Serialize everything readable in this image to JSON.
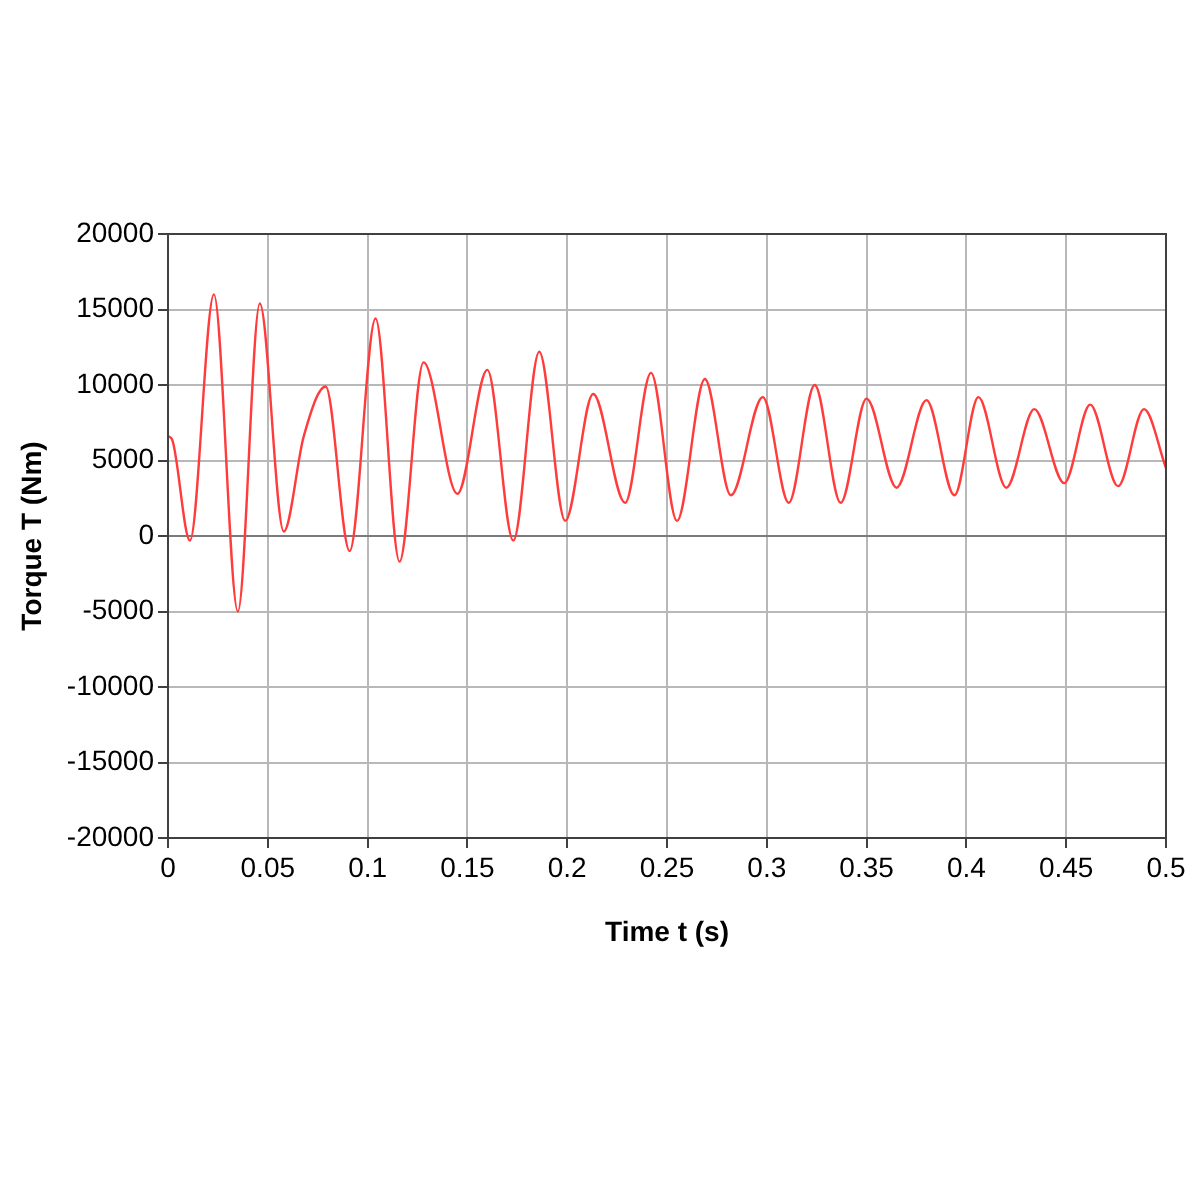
{
  "chart_data": {
    "type": "line",
    "xlabel": "Time t (s)",
    "ylabel": "Torque T (Nm)",
    "x": [
      0,
      0.002,
      0.011,
      0.023,
      0.035,
      0.046,
      0.058,
      0.068,
      0.079,
      0.091,
      0.104,
      0.116,
      0.128,
      0.145,
      0.16,
      0.173,
      0.186,
      0.199,
      0.213,
      0.229,
      0.242,
      0.255,
      0.269,
      0.282,
      0.298,
      0.311,
      0.324,
      0.337,
      0.35,
      0.365,
      0.38,
      0.394,
      0.406,
      0.42,
      0.434,
      0.449,
      0.462,
      0.476,
      0.489,
      0.5
    ],
    "values": [
      6600,
      6400,
      -300,
      16000,
      -5000,
      15400,
      300,
      6600,
      9900,
      -1000,
      14400,
      -1700,
      11500,
      2800,
      11000,
      -300,
      12200,
      1000,
      9400,
      2200,
      10800,
      1000,
      10400,
      2700,
      9200,
      2200,
      10000,
      2200,
      9100,
      3200,
      9000,
      2700,
      9200,
      3200,
      8400,
      3500,
      8700,
      3300,
      8400,
      4500
    ],
    "color": "#ff3b3b",
    "line_style": "solid",
    "marker": "none",
    "xlim": [
      0,
      0.5
    ],
    "xticks": [
      0,
      0.05,
      0.1,
      0.15,
      0.2,
      0.25,
      0.3,
      0.35,
      0.4,
      0.45,
      0.5
    ],
    "ylim": [
      -20000,
      20000
    ],
    "yticks": [
      -20000,
      -15000,
      -10000,
      -5000,
      0,
      5000,
      10000,
      15000,
      20000
    ],
    "grid": true
  }
}
